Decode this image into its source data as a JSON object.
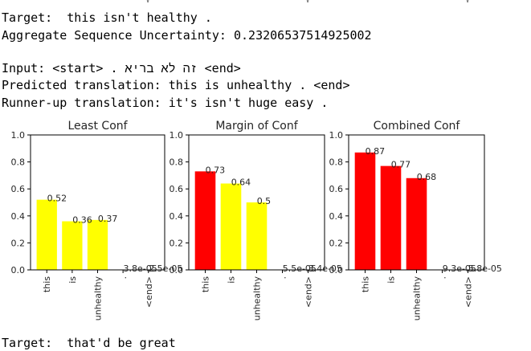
{
  "output": {
    "target_prefix": "Target:  ",
    "target_text": "this isn't healthy .",
    "uncertainty_prefix": "Aggregate Sequence Uncertainty: ",
    "uncertainty_value": "0.23206537514925002",
    "input_prefix": "Input: ",
    "input_start": "<start>",
    "input_source": "זה לא בריא .",
    "input_end": "<end>",
    "predicted_prefix": "Predicted translation: ",
    "predicted_text": "this is unhealthy . <end>",
    "runner_up_prefix": "Runner-up translation: ",
    "runner_up_text": "it's isn't huge easy .",
    "next_target_prefix": "Target:  ",
    "next_target_text": "that'd be great"
  },
  "colors": {
    "red": "#ff0000",
    "yellow": "#ffff00",
    "axis": "#000000",
    "text": "#262626"
  },
  "chart_data": [
    {
      "type": "bar",
      "title": "Least Conf",
      "categories": [
        "this",
        "is",
        "unhealthy",
        ".",
        "<end>"
      ],
      "values": [
        0.52,
        0.36,
        0.37,
        3.8e-05,
        2.5e-05
      ],
      "value_labels": [
        "0.52",
        "0.36",
        "0.37",
        "3.8e-05",
        "2.5e-05"
      ],
      "bar_colors": [
        "#ffff00",
        "#ffff00",
        "#ffff00",
        "#ffff00",
        "#ffff00"
      ],
      "ylim": [
        0,
        1.0
      ],
      "yticks": [
        "0.0",
        "0.2",
        "0.4",
        "0.6",
        "0.8",
        "1.0"
      ],
      "xlabel": "",
      "ylabel": "",
      "grid": false
    },
    {
      "type": "bar",
      "title": "Margin of Conf",
      "categories": [
        "this",
        "is",
        "unhealthy",
        ".",
        "<end>"
      ],
      "values": [
        0.73,
        0.64,
        0.5,
        5.5e-05,
        3.4e-05
      ],
      "value_labels": [
        "0.73",
        "0.64",
        "0.5",
        "5.5e-05",
        "3.4e-05"
      ],
      "bar_colors": [
        "#ff0000",
        "#ffff00",
        "#ffff00",
        "#ffff00",
        "#ffff00"
      ],
      "ylim": [
        0,
        1.0
      ],
      "yticks": [
        "0.0",
        "0.2",
        "0.4",
        "0.6",
        "0.8",
        "1.0"
      ],
      "xlabel": "",
      "ylabel": "",
      "grid": false
    },
    {
      "type": "bar",
      "title": "Combined Conf",
      "categories": [
        "this",
        "is",
        "unhealthy",
        ".",
        "<end>"
      ],
      "values": [
        0.87,
        0.77,
        0.68,
        9.3e-05,
        5.8e-05
      ],
      "value_labels": [
        "0.87",
        "0.77",
        "0.68",
        "9.3e-05",
        "5.8e-05"
      ],
      "bar_colors": [
        "#ff0000",
        "#ff0000",
        "#ff0000",
        "#ffff00",
        "#ffff00"
      ],
      "ylim": [
        0,
        1.0
      ],
      "yticks": [
        "0.0",
        "0.2",
        "0.4",
        "0.6",
        "0.8",
        "1.0"
      ],
      "xlabel": "",
      "ylabel": "",
      "grid": false
    }
  ]
}
